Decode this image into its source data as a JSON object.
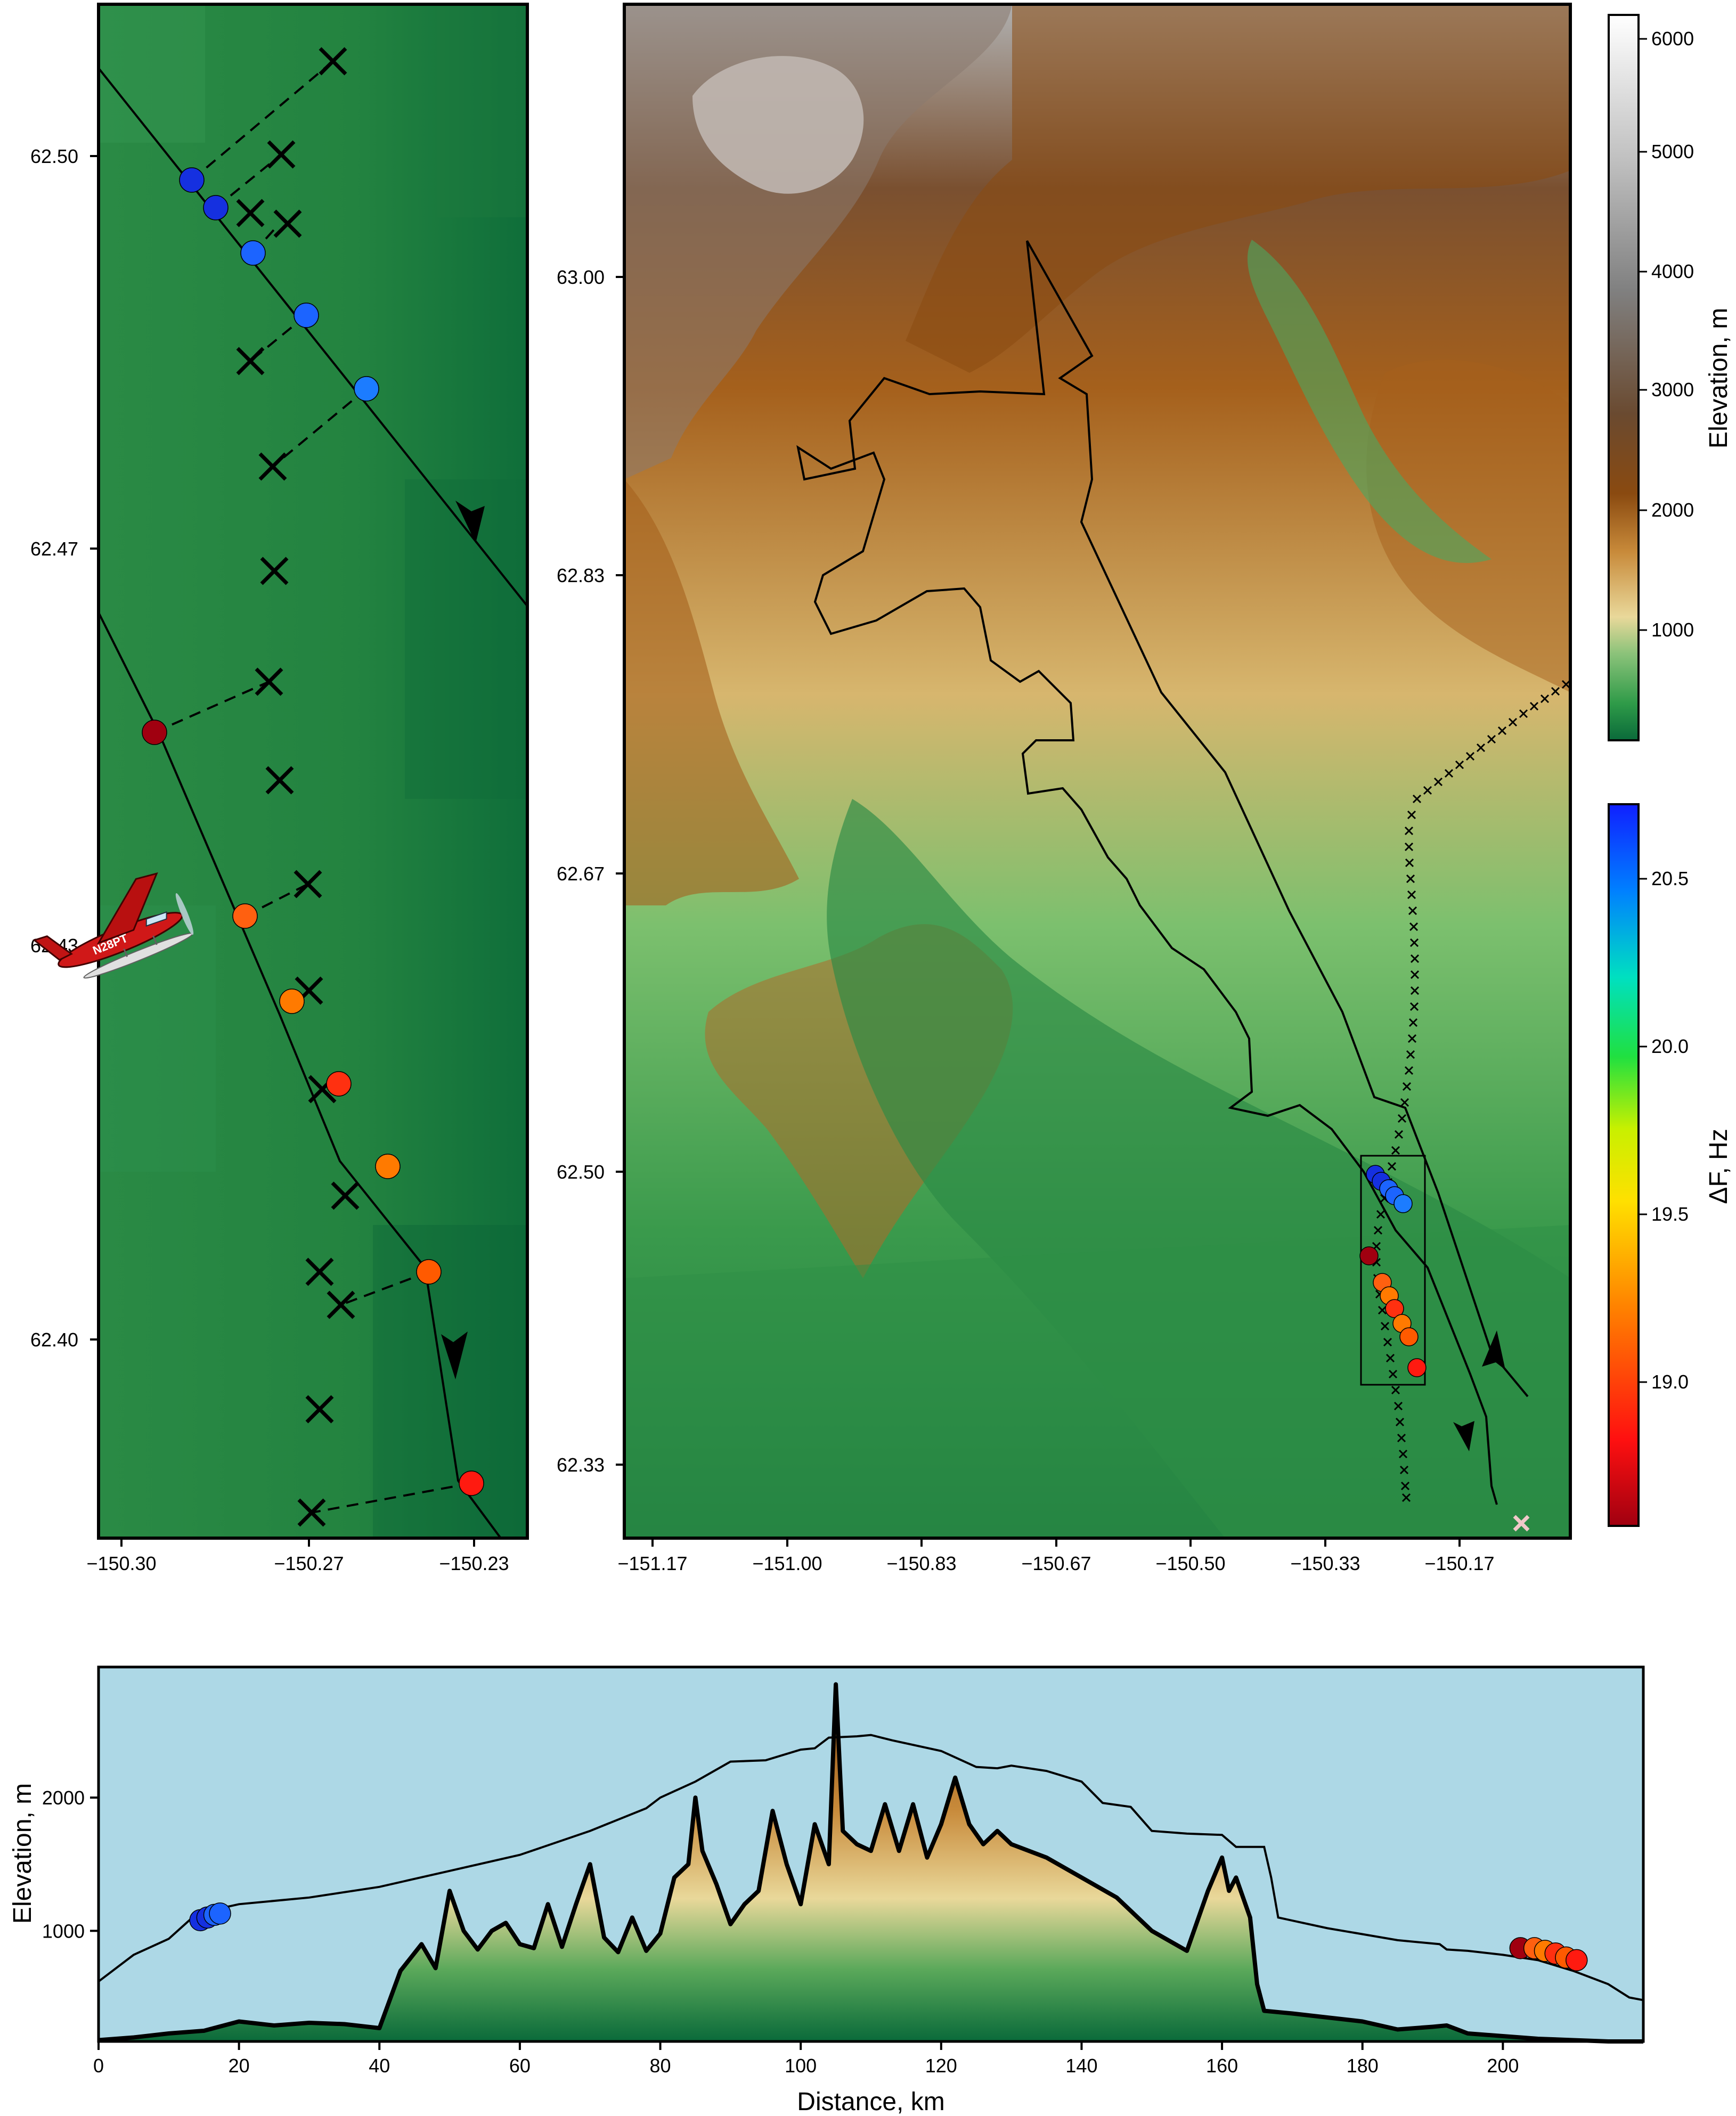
{
  "inset_map": {
    "x_ticks": [
      "−150.30",
      "−150.27",
      "−150.23"
    ],
    "y_ticks": [
      "62.50",
      "62.47",
      "62.43",
      "62.40"
    ],
    "ground_color": "#2a8a45"
  },
  "main_map": {
    "x_ticks": [
      "−151.17",
      "−151.00",
      "−150.83",
      "−150.67",
      "−150.50",
      "−150.33",
      "−150.17"
    ],
    "y_ticks": [
      "63.00",
      "62.83",
      "62.67",
      "62.50",
      "62.33"
    ]
  },
  "elevation_colorbar": {
    "title": "Elevation, m",
    "ticks": [
      "6000",
      "5000",
      "4000",
      "3000",
      "2000",
      "1000"
    ],
    "range": [
      0,
      6200
    ],
    "colors": [
      "#0a6a3a",
      "#2e9a48",
      "#8cc37a",
      "#e9d89a",
      "#c88a3a",
      "#8a4a10",
      "#6a4a30",
      "#808080",
      "#c0c0c0",
      "#ffffff"
    ]
  },
  "frequency_colorbar": {
    "title": "ΔF, Hz",
    "ticks": [
      "20.5",
      "20.0",
      "19.5",
      "19.0"
    ],
    "range": [
      18.6,
      20.75
    ],
    "colors": [
      "#a00010",
      "#ff1010",
      "#ff8000",
      "#ffe000",
      "#c8f000",
      "#20e040",
      "#00e0c0",
      "#0080ff",
      "#1020ff"
    ]
  },
  "profile": {
    "x_label": "Distance, km",
    "y_label": "Elevation, m",
    "x_ticks": [
      "0",
      "20",
      "40",
      "60",
      "80",
      "100",
      "120",
      "140",
      "160",
      "180",
      "200"
    ],
    "y_ticks": [
      "2000",
      "1000"
    ],
    "sky_color": "#add8e6",
    "aircraft_label": "N28PT"
  },
  "chart_data": {
    "type": "line",
    "title": "",
    "xlabel": "Distance, km",
    "ylabel": "Elevation, m",
    "xlim": [
      0,
      220
    ],
    "ylim": [
      170,
      2980
    ],
    "series": [
      {
        "x": [
          0,
          5,
          10,
          15,
          20,
          25,
          30,
          35,
          40,
          43,
          46,
          48,
          50,
          52,
          54,
          56,
          58,
          60,
          62,
          64,
          66,
          68,
          70,
          72,
          74,
          76,
          78,
          80,
          82,
          84,
          85,
          86,
          88,
          90,
          92,
          94,
          96,
          98,
          100,
          102,
          104,
          105,
          106,
          108,
          110,
          112,
          114,
          116,
          118,
          120,
          122,
          124,
          126,
          128,
          130,
          135,
          140,
          145,
          150,
          155,
          158,
          160,
          161,
          162,
          163,
          164,
          165,
          166,
          170,
          175,
          180,
          185,
          190,
          192,
          195,
          200,
          205,
          210,
          215,
          220
        ],
        "y": [
          180,
          200,
          230,
          250,
          320,
          290,
          310,
          300,
          270,
          700,
          900,
          720,
          1300,
          1000,
          860,
          1000,
          1060,
          900,
          870,
          1200,
          880,
          1200,
          1500,
          950,
          840,
          1100,
          850,
          980,
          1400,
          1500,
          2000,
          1600,
          1350,
          1050,
          1200,
          1300,
          1900,
          1500,
          1200,
          1800,
          1500,
          2850,
          1750,
          1650,
          1600,
          1950,
          1600,
          1950,
          1550,
          1800,
          2150,
          1800,
          1650,
          1750,
          1650,
          1550,
          1400,
          1250,
          1000,
          850,
          1300,
          1550,
          1300,
          1400,
          1250,
          1100,
          600,
          400,
          380,
          350,
          320,
          260,
          280,
          290,
          230,
          210,
          190,
          180,
          170,
          170
        ]
      },
      {
        "x": [
          0,
          5,
          10,
          14,
          20,
          30,
          40,
          50,
          60,
          70,
          78,
          80,
          85,
          90,
          95,
          100,
          102,
          104,
          108,
          110,
          113,
          120,
          125,
          128,
          130,
          135,
          140,
          143,
          147,
          150,
          155,
          160,
          162,
          166,
          167,
          168,
          175,
          185,
          191,
          192,
          195,
          200,
          205,
          210,
          215,
          218,
          220
        ],
        "y": [
          620,
          820,
          940,
          1130,
          1200,
          1250,
          1330,
          1450,
          1570,
          1750,
          1920,
          2000,
          2120,
          2270,
          2280,
          2360,
          2370,
          2450,
          2460,
          2470,
          2430,
          2350,
          2230,
          2220,
          2240,
          2200,
          2120,
          1960,
          1930,
          1750,
          1730,
          1720,
          1630,
          1630,
          1400,
          1100,
          1020,
          930,
          900,
          860,
          850,
          820,
          780,
          700,
          600,
          500,
          480
        ]
      }
    ]
  }
}
